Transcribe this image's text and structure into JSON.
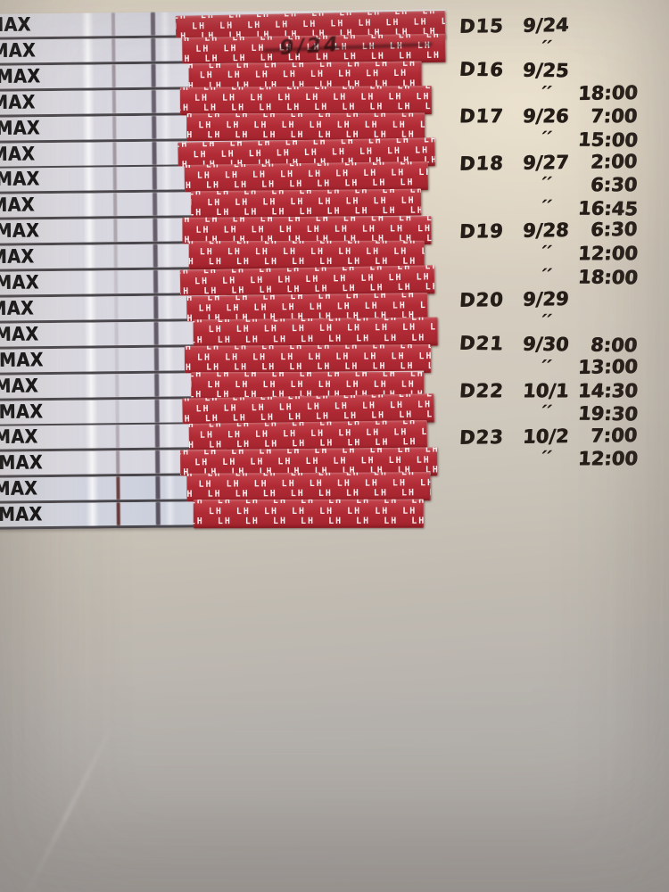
{
  "strips": {
    "brand_label": "MAX",
    "tape_label": "LH",
    "scribble_note": "9/24",
    "count": 20,
    "items": [
      {
        "test_line_opacity": 0.42,
        "control_line_opacity": 0.72,
        "strong": false
      },
      {
        "test_line_opacity": 0.45,
        "control_line_opacity": 0.75,
        "strong": false
      },
      {
        "test_line_opacity": 0.5,
        "control_line_opacity": 0.78,
        "strong": false
      },
      {
        "test_line_opacity": 0.45,
        "control_line_opacity": 0.75,
        "strong": false
      },
      {
        "test_line_opacity": 0.42,
        "control_line_opacity": 0.78,
        "strong": false
      },
      {
        "test_line_opacity": 0.48,
        "control_line_opacity": 0.8,
        "strong": false
      },
      {
        "test_line_opacity": 0.45,
        "control_line_opacity": 0.78,
        "strong": false
      },
      {
        "test_line_opacity": 0.42,
        "control_line_opacity": 0.75,
        "strong": false
      },
      {
        "test_line_opacity": 0.38,
        "control_line_opacity": 0.78,
        "strong": false
      },
      {
        "test_line_opacity": 0.25,
        "control_line_opacity": 0.8,
        "strong": false
      },
      {
        "test_line_opacity": 0.16,
        "control_line_opacity": 0.8,
        "strong": false
      },
      {
        "test_line_opacity": 0.13,
        "control_line_opacity": 0.82,
        "strong": false
      },
      {
        "test_line_opacity": 0.16,
        "control_line_opacity": 0.8,
        "strong": false
      },
      {
        "test_line_opacity": 0.13,
        "control_line_opacity": 0.78,
        "strong": false
      },
      {
        "test_line_opacity": 0.2,
        "control_line_opacity": 0.8,
        "strong": false
      },
      {
        "test_line_opacity": 0.16,
        "control_line_opacity": 0.78,
        "strong": false
      },
      {
        "test_line_opacity": 0.32,
        "control_line_opacity": 0.8,
        "strong": false
      },
      {
        "test_line_opacity": 0.5,
        "control_line_opacity": 0.82,
        "strong": false
      },
      {
        "test_line_opacity": 0.88,
        "control_line_opacity": 0.85,
        "strong": true
      },
      {
        "test_line_opacity": 0.92,
        "control_line_opacity": 0.85,
        "strong": true
      }
    ]
  },
  "log": {
    "ditto_mark": "′′",
    "rows": [
      {
        "day": "D15",
        "date": "9/24",
        "time": ""
      },
      {
        "day": "",
        "date": "′′",
        "time": ""
      },
      {
        "day": "D16",
        "date": "9/25",
        "time": ""
      },
      {
        "day": "",
        "date": "′′",
        "time": "18:00"
      },
      {
        "day": "D17",
        "date": "9/26",
        "time": "7:00"
      },
      {
        "day": "",
        "date": "′′",
        "time": "15:00"
      },
      {
        "day": "D18",
        "date": "9/27",
        "time": "2:00"
      },
      {
        "day": "",
        "date": "′′",
        "time": "6:30"
      },
      {
        "day": "",
        "date": "′′",
        "time": "16:45"
      },
      {
        "day": "D19",
        "date": "9/28",
        "time": "6:30"
      },
      {
        "day": "",
        "date": "′′",
        "time": "12:00"
      },
      {
        "day": "",
        "date": "′′",
        "time": "18:00"
      },
      {
        "day": "D20",
        "date": "9/29",
        "time": ""
      },
      {
        "day": "",
        "date": "′′",
        "time": ""
      },
      {
        "day": "D21",
        "date": "9/30",
        "time": "8:00"
      },
      {
        "day": "",
        "date": "′′",
        "time": "13:00"
      },
      {
        "day": "D22",
        "date": "10/1",
        "time": "14:30"
      },
      {
        "day": "",
        "date": "′′",
        "time": "19:30"
      },
      {
        "day": "D23",
        "date": "10/2",
        "time": "7:00"
      },
      {
        "day": "",
        "date": "′′",
        "time": "12:00"
      }
    ]
  },
  "colors": {
    "wall_top": "#ded5c5",
    "wall_bottom": "#b2aeaa",
    "ink": "#251d18",
    "strip_body": "#e2e1e8",
    "brand_text": "#101010",
    "tape_red_dark": "#a2242e",
    "tape_red": "#b12b35",
    "tape_red_light": "#c2434c",
    "tape_text": "#ffffff",
    "test_line": "#6d5761",
    "test_line_strong": "#5f2e2b",
    "control_line": "#473c4a"
  }
}
